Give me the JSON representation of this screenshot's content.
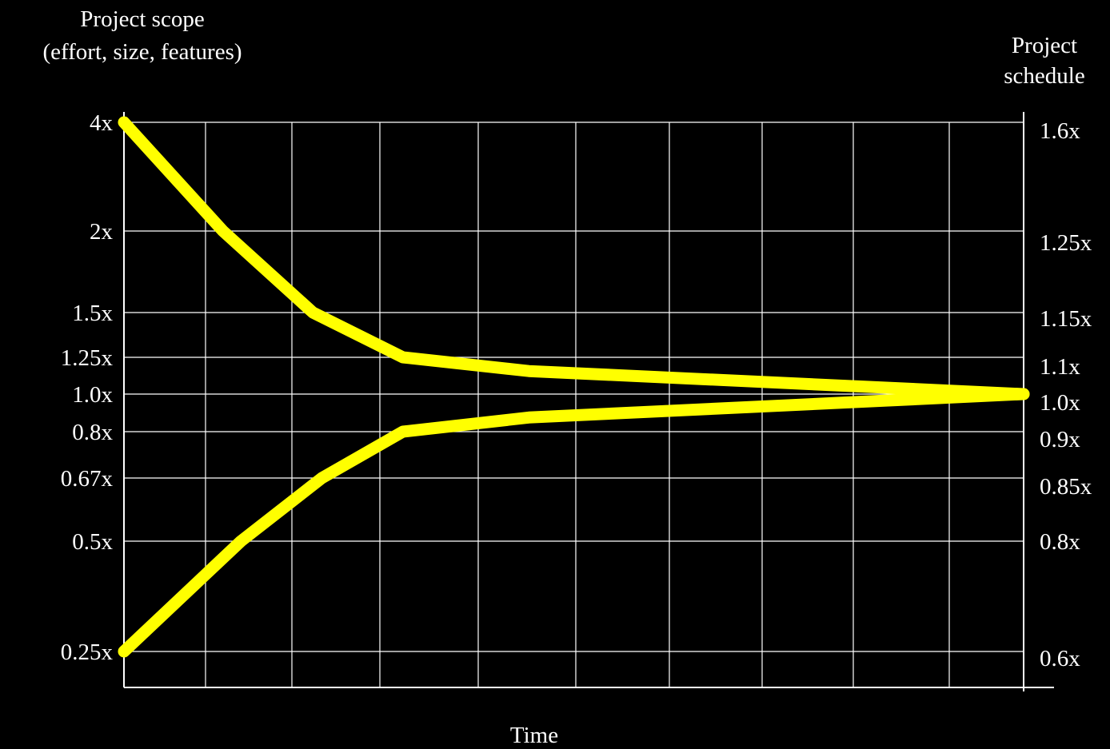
{
  "chart_data": {
    "type": "line",
    "title": "",
    "xlabel": "Time",
    "ylabel_left": [
      "Project scope",
      "(effort, size, features)"
    ],
    "ylabel_right": [
      "Project",
      "schedule"
    ],
    "grid": true,
    "y_scale": "log",
    "ylim": [
      0.2,
      4
    ],
    "left_ticks": [
      {
        "value": 4,
        "label": "4x"
      },
      {
        "value": 2,
        "label": "2x"
      },
      {
        "value": 1.5,
        "label": "1.5x"
      },
      {
        "value": 1.25,
        "label": "1.25x"
      },
      {
        "value": 1.0,
        "label": "1.0x"
      },
      {
        "value": 0.8,
        "label": "0.8x"
      },
      {
        "value": 0.67,
        "label": "0.67x"
      },
      {
        "value": 0.5,
        "label": "0.5x"
      },
      {
        "value": 0.25,
        "label": "0.25x"
      }
    ],
    "right_ticks": [
      {
        "value": 1.6,
        "label": "1.6x"
      },
      {
        "value": 1.25,
        "label": "1.25x"
      },
      {
        "value": 1.15,
        "label": "1.15x"
      },
      {
        "value": 1.1,
        "label": "1.1x"
      },
      {
        "value": 1.0,
        "label": "1.0x"
      },
      {
        "value": 0.9,
        "label": "0.9x"
      },
      {
        "value": 0.85,
        "label": "0.85x"
      },
      {
        "value": 0.8,
        "label": "0.8x"
      },
      {
        "value": 0.6,
        "label": "0.6x"
      }
    ],
    "series": [
      {
        "x": [
          0,
          0.11,
          0.21,
          0.31,
          0.45,
          1.0
        ],
        "values": [
          4,
          2,
          1.5,
          1.25,
          1.15,
          1.0
        ]
      },
      {
        "x": [
          0,
          0.13,
          0.22,
          0.31,
          0.45,
          1.0
        ],
        "values": [
          0.25,
          0.5,
          0.67,
          0.8,
          0.87,
          1.0
        ]
      }
    ],
    "line_color": "#ffff00"
  }
}
